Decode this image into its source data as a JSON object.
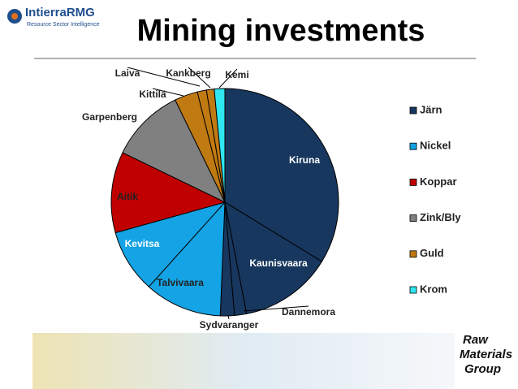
{
  "header": {
    "logo_name": "IntierraRMG",
    "logo_tagline": "Resource Sector Intelligence",
    "footer_logo": [
      "Raw",
      "Materials",
      "Group"
    ]
  },
  "chart_data": {
    "type": "pie",
    "title": "Mining investments",
    "series": [
      {
        "name": "Järn",
        "color": "#17375e",
        "slices": [
          {
            "label": "Kiruna",
            "value": 33.7
          },
          {
            "label": "Kaunisvaara",
            "value": 13.2
          },
          {
            "label": "Dannemora",
            "value": 1.7
          },
          {
            "label": "Sydvaranger",
            "value": 2.0
          }
        ]
      },
      {
        "name": "Nickel",
        "color": "#14a3e4",
        "slices": [
          {
            "label": "Talvivaara",
            "value": 11.0
          },
          {
            "label": "Kevitsa",
            "value": 9.0
          }
        ]
      },
      {
        "name": "Koppar",
        "color": "#c00000",
        "slices": [
          {
            "label": "Aitik",
            "value": 11.5
          }
        ]
      },
      {
        "name": "Zink/Bly",
        "color": "#808080",
        "slices": [
          {
            "label": "Garpenberg",
            "value": 10.6
          }
        ]
      },
      {
        "name": "Guld",
        "color": "#c07a12",
        "slices": [
          {
            "label": "Kittilä",
            "value": 3.3
          },
          {
            "label": "Laiva",
            "value": 1.3
          },
          {
            "label": "Kankberg",
            "value": 1.1
          }
        ]
      },
      {
        "name": "Krom",
        "color": "#30e6f0",
        "slices": [
          {
            "label": "Kemi",
            "value": 1.5
          }
        ]
      }
    ],
    "legend": "right"
  }
}
